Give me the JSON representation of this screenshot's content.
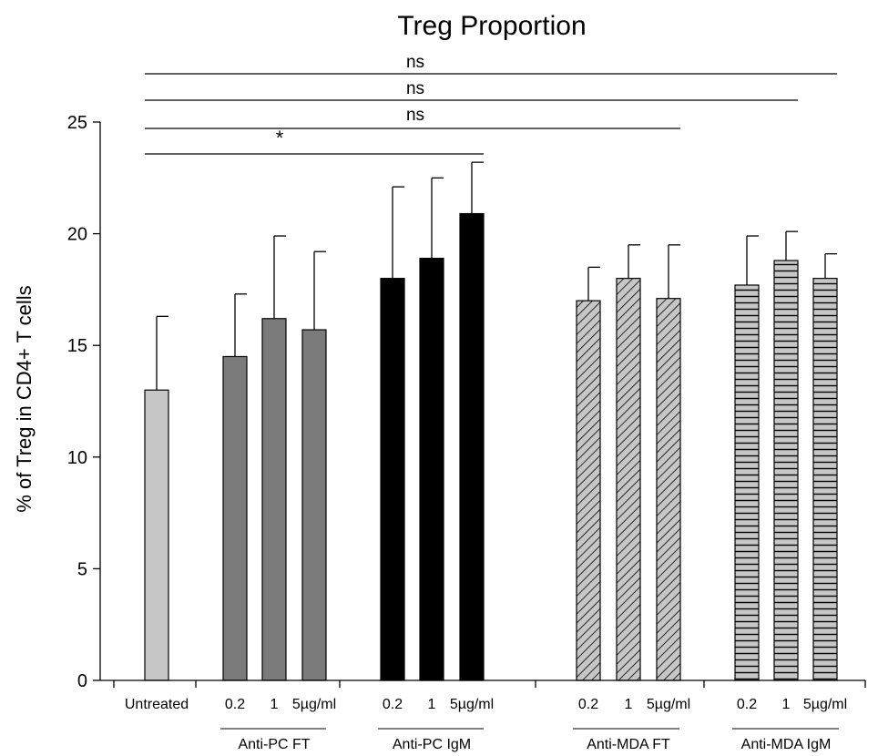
{
  "chart_data": {
    "type": "bar",
    "title": "Treg Proportion",
    "ylabel": "% of Treg in CD4+ T cells",
    "xlabel": "",
    "ylim": [
      0,
      25
    ],
    "yticks": [
      0,
      5,
      10,
      15,
      20,
      25
    ],
    "grid": false,
    "legend": "none",
    "groups": [
      {
        "label": "",
        "bars": [
          {
            "tick": "Untreated",
            "value": 13.0,
            "error": 3.3,
            "fill": "#c6c6c6",
            "pattern": "solid"
          }
        ]
      },
      {
        "label": "Anti-PC FT",
        "bars": [
          {
            "tick": "0.2",
            "value": 14.5,
            "error": 2.8,
            "fill": "#7b7b7b",
            "pattern": "solid"
          },
          {
            "tick": "1",
            "value": 16.2,
            "error": 3.7,
            "fill": "#7b7b7b",
            "pattern": "solid"
          },
          {
            "tick": "5µg/ml",
            "value": 15.7,
            "error": 3.5,
            "fill": "#7b7b7b",
            "pattern": "solid"
          }
        ]
      },
      {
        "label": "Anti-PC IgM",
        "bars": [
          {
            "tick": "0.2",
            "value": 18.0,
            "error": 4.1,
            "fill": "#000000",
            "pattern": "solid"
          },
          {
            "tick": "1",
            "value": 18.9,
            "error": 3.6,
            "fill": "#000000",
            "pattern": "solid"
          },
          {
            "tick": "5µg/ml",
            "value": 20.9,
            "error": 2.3,
            "fill": "#000000",
            "pattern": "solid"
          }
        ]
      },
      {
        "label": "Anti-MDA FT",
        "bars": [
          {
            "tick": "0.2",
            "value": 17.0,
            "error": 1.5,
            "fill": "#c6c6c6",
            "pattern": "diagonal"
          },
          {
            "tick": "1",
            "value": 18.0,
            "error": 1.5,
            "fill": "#c6c6c6",
            "pattern": "diagonal"
          },
          {
            "tick": "5µg/ml",
            "value": 17.1,
            "error": 2.4,
            "fill": "#c6c6c6",
            "pattern": "diagonal"
          }
        ]
      },
      {
        "label": "Anti-MDA IgM",
        "bars": [
          {
            "tick": "0.2",
            "value": 17.7,
            "error": 2.2,
            "fill": "#c6c6c6",
            "pattern": "horizontal"
          },
          {
            "tick": "1",
            "value": 18.8,
            "error": 1.3,
            "fill": "#c6c6c6",
            "pattern": "horizontal"
          },
          {
            "tick": "5µg/ml",
            "value": 18.0,
            "error": 1.1,
            "fill": "#c6c6c6",
            "pattern": "horizontal"
          }
        ]
      }
    ],
    "significance": [
      {
        "text": "ns",
        "from": "Untreated",
        "to": "Anti-MDA IgM 5µg/ml"
      },
      {
        "text": "ns",
        "from": "Untreated",
        "to": "Anti-MDA IgM 1"
      },
      {
        "text": "ns",
        "from": "Untreated",
        "to": "Anti-MDA FT 5µg/ml"
      },
      {
        "text": "*",
        "from": "Untreated",
        "to": "Anti-PC IgM 5µg/ml"
      }
    ]
  }
}
